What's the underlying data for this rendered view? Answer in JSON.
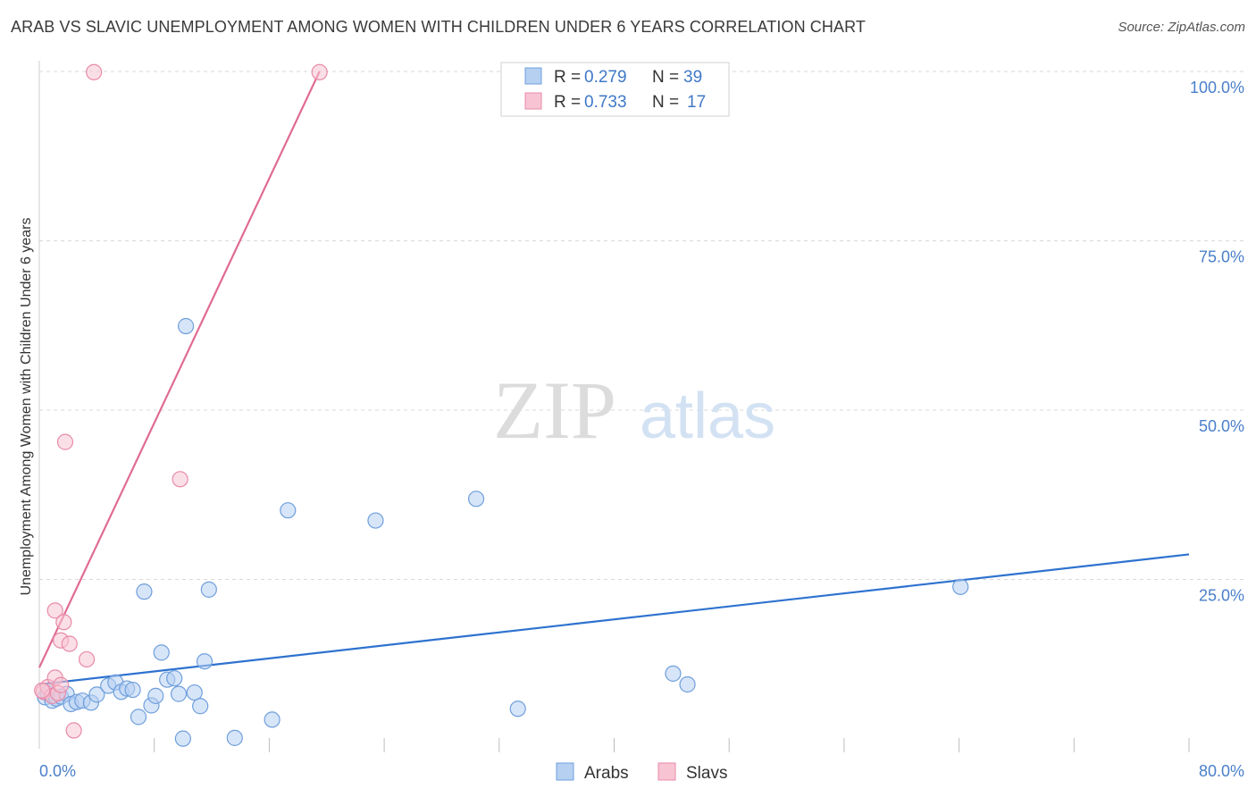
{
  "title": "ARAB VS SLAVIC UNEMPLOYMENT AMONG WOMEN WITH CHILDREN UNDER 6 YEARS CORRELATION CHART",
  "source": "Source: ZipAtlas.com",
  "watermark": {
    "zip": "ZIP",
    "atlas": "atlas"
  },
  "colors": {
    "arabs_fill": "#b6d0f2",
    "arabs_stroke": "#6f9fdc",
    "arabs_line": "#2e72cf",
    "slavs_fill": "#f8c4d4",
    "slavs_stroke": "#e88aa8",
    "slavs_line": "#e06b93",
    "grid": "#d9d9d9",
    "tick": "#4a7fc9"
  },
  "legend": {
    "r_label": "R =",
    "n_label": "N =",
    "arabs_r": "0.279",
    "arabs_n": "39",
    "slavs_r": "0.733",
    "slavs_n": "17"
  },
  "chart_data": {
    "type": "scatter",
    "title": "ARAB VS SLAVIC UNEMPLOYMENT AMONG WOMEN WITH CHILDREN UNDER 6 YEARS CORRELATION CHART",
    "xlabel": "",
    "ylabel": "Unemployment Among Women with Children Under 6 years",
    "xlim": [
      0,
      80
    ],
    "ylim": [
      0,
      100
    ],
    "x_tick_labels": [
      "0.0%",
      "80.0%"
    ],
    "y_ticks": [
      25,
      50,
      75,
      100
    ],
    "y_tick_labels": [
      "25.0%",
      "50.0%",
      "75.0%",
      "100.0%"
    ],
    "series": [
      {
        "name": "Arabs",
        "points": [
          [
            0.4,
            7.6
          ],
          [
            0.6,
            8.2
          ],
          [
            0.9,
            7.1
          ],
          [
            1.2,
            7.4
          ],
          [
            1.5,
            7.7
          ],
          [
            1.9,
            8.1
          ],
          [
            2.2,
            6.6
          ],
          [
            2.6,
            6.9
          ],
          [
            3.0,
            7.1
          ],
          [
            3.6,
            6.8
          ],
          [
            4.0,
            8.0
          ],
          [
            4.8,
            9.3
          ],
          [
            5.3,
            9.8
          ],
          [
            5.7,
            8.4
          ],
          [
            6.1,
            8.9
          ],
          [
            6.5,
            8.7
          ],
          [
            6.9,
            4.7
          ],
          [
            7.3,
            23.2
          ],
          [
            7.8,
            6.4
          ],
          [
            8.1,
            7.8
          ],
          [
            8.5,
            14.2
          ],
          [
            8.9,
            10.2
          ],
          [
            9.4,
            10.4
          ],
          [
            9.7,
            8.1
          ],
          [
            10.0,
            1.5
          ],
          [
            10.8,
            8.3
          ],
          [
            11.2,
            6.3
          ],
          [
            11.5,
            12.9
          ],
          [
            11.8,
            23.5
          ],
          [
            10.2,
            62.4
          ],
          [
            13.6,
            1.6
          ],
          [
            16.2,
            4.3
          ],
          [
            17.3,
            35.2
          ],
          [
            23.4,
            33.7
          ],
          [
            30.4,
            36.9
          ],
          [
            33.3,
            5.9
          ],
          [
            44.1,
            11.1
          ],
          [
            45.1,
            9.5
          ],
          [
            64.1,
            23.9
          ]
        ],
        "trend": {
          "x": [
            0,
            80
          ],
          "y": [
            9.5,
            28.7
          ]
        }
      },
      {
        "name": "Slavs",
        "points": [
          [
            0.3,
            8.4
          ],
          [
            0.6,
            9.1
          ],
          [
            0.9,
            7.8
          ],
          [
            1.1,
            10.5
          ],
          [
            1.3,
            8.2
          ],
          [
            1.5,
            9.4
          ],
          [
            1.1,
            20.4
          ],
          [
            1.5,
            16.0
          ],
          [
            1.7,
            18.7
          ],
          [
            2.1,
            15.5
          ],
          [
            2.4,
            2.7
          ],
          [
            3.3,
            13.2
          ],
          [
            1.8,
            45.3
          ],
          [
            9.8,
            39.8
          ],
          [
            3.8,
            99.9
          ],
          [
            19.5,
            99.9
          ],
          [
            0.2,
            8.6
          ]
        ],
        "trend": {
          "x": [
            0,
            19.5
          ],
          "y": [
            12,
            100
          ]
        }
      }
    ],
    "legend_entries": [
      "Arabs",
      "Slavs"
    ]
  }
}
